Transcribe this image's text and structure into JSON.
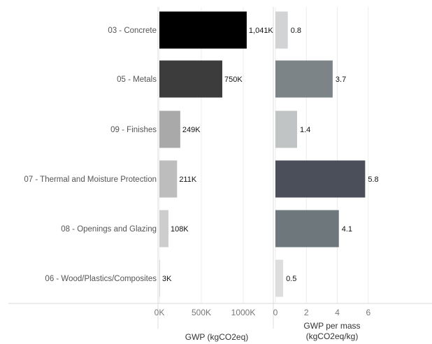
{
  "chart_data": [
    {
      "type": "bar",
      "orientation": "horizontal",
      "categories": [
        "03 - Concrete",
        "05 - Metals",
        "09 - Finishes",
        "07 - Thermal and Moisture Protection",
        "08 - Openings and Glazing",
        "06 - Wood/Plastics/Composites"
      ],
      "values": [
        1041000,
        750000,
        249000,
        211000,
        108000,
        3000
      ],
      "data_labels": [
        "1,041K",
        "750K",
        "249K",
        "211K",
        "108K",
        "3K"
      ],
      "bar_colors": [
        "#000000",
        "#3c3c3c",
        "#a9a9a9",
        "#bdbdbd",
        "#cdcdcd",
        "#d6d6d6"
      ],
      "xlabel": "GWP (kgCO2eq)",
      "xlim": [
        0,
        1200000
      ],
      "ticks": [
        0,
        500000,
        1000000
      ],
      "tick_labels": [
        "0K",
        "500K",
        "1000K"
      ],
      "grid": true
    },
    {
      "type": "bar",
      "orientation": "horizontal",
      "categories": [
        "03 - Concrete",
        "05 - Metals",
        "09 - Finishes",
        "07 - Thermal and Moisture Protection",
        "08 - Openings and Glazing",
        "06 - Wood/Plastics/Composites"
      ],
      "values": [
        0.8,
        3.7,
        1.4,
        5.8,
        4.1,
        0.5
      ],
      "data_labels": [
        "0.8",
        "3.7",
        "1.4",
        "5.8",
        "4.1",
        "0.5"
      ],
      "bar_colors": [
        "#d1d3d4",
        "#7c8487",
        "#c1c4c5",
        "#4a4f59",
        "#6e777b",
        "#dcdede"
      ],
      "xlabel_lines": [
        "GWP per mass",
        "(kgCO2eq/kg)"
      ],
      "xlim": [
        0,
        7.5
      ],
      "ticks": [
        0,
        2,
        4,
        6
      ],
      "tick_labels": [
        "0",
        "2",
        "4",
        "6"
      ],
      "grid": true
    }
  ]
}
